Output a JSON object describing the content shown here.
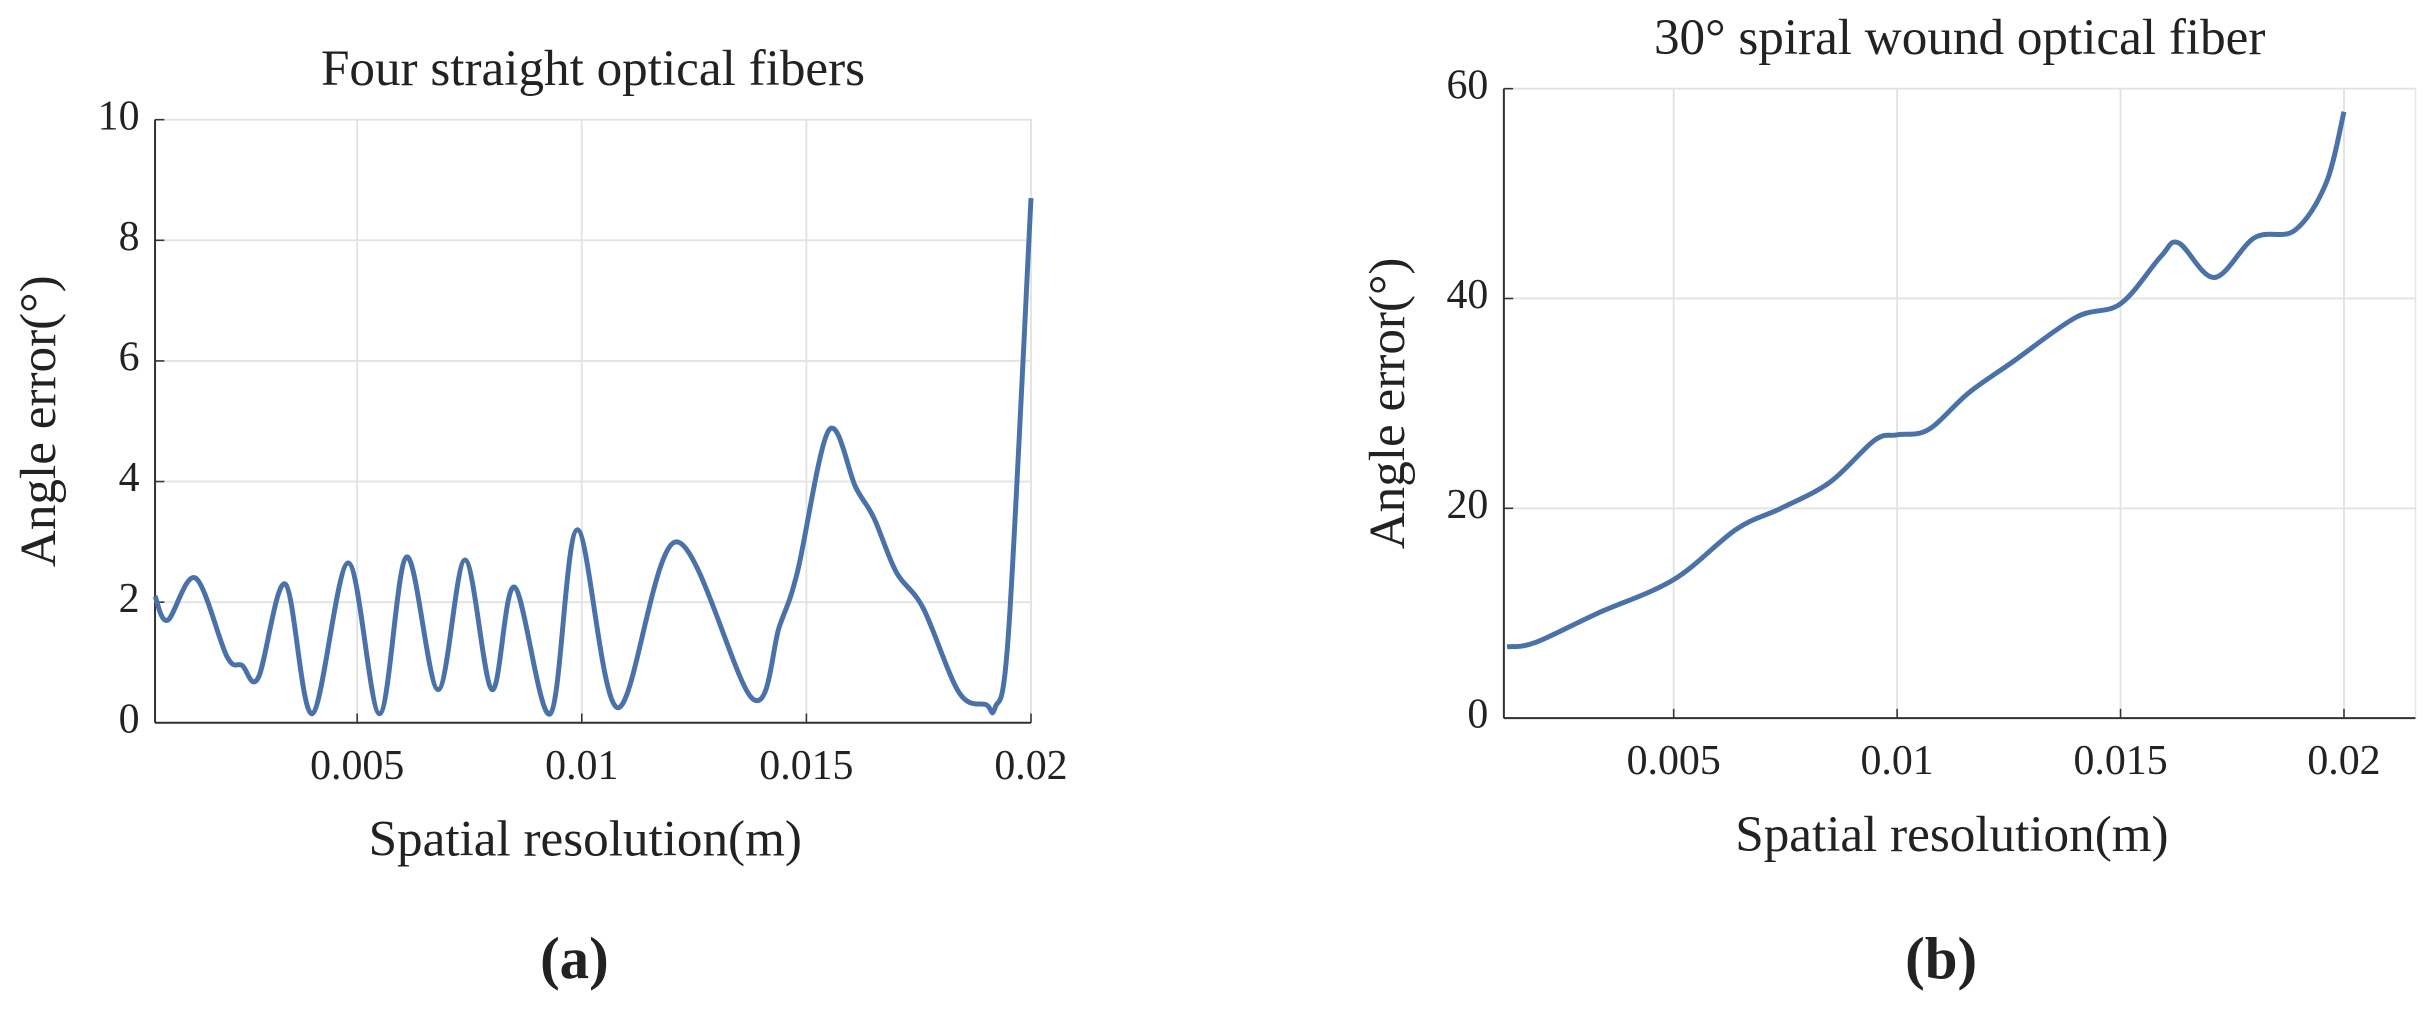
{
  "chart_data": [
    {
      "type": "line",
      "title": "Four straight optical fibers",
      "xlabel": "Spatial resolution(m)",
      "ylabel": "Angle error(°)",
      "panel_label": "(a)",
      "x": [
        0.0005,
        0.00078,
        0.0014,
        0.0021,
        0.00244,
        0.0028,
        0.0034,
        0.004,
        0.0048,
        0.0055,
        0.0061,
        0.0068,
        0.0074,
        0.008,
        0.0085,
        0.0093,
        0.0099,
        0.0108,
        0.0121,
        0.0138,
        0.0144,
        0.0148,
        0.0155,
        0.0161,
        0.0165,
        0.017,
        0.0176,
        0.0184,
        0.019,
        0.0192,
        0.0195,
        0.02
      ],
      "series": [
        {
          "name": "Angle error",
          "color": "#4a72a8",
          "values": [
            2.1,
            1.7,
            2.4,
            1.1,
            0.95,
            0.75,
            2.3,
            0.15,
            2.65,
            0.15,
            2.75,
            0.55,
            2.7,
            0.55,
            2.25,
            0.15,
            3.2,
            0.25,
            3.0,
            0.4,
            1.6,
            2.5,
            4.85,
            3.9,
            3.4,
            2.5,
            1.9,
            0.5,
            0.3,
            0.25,
            1.5,
            8.7
          ]
        }
      ],
      "xlim": [
        0.0005,
        0.02
      ],
      "xticks": [
        0.005,
        0.01,
        0.015,
        0.02
      ],
      "ylim": [
        0,
        10
      ],
      "yticks": [
        0,
        2,
        4,
        6,
        8,
        10
      ],
      "grid": true
    },
    {
      "type": "line",
      "title": "30° spiral wound optical fiber",
      "xlabel": "Spatial resolution(m)",
      "ylabel": "Angle error(°)",
      "panel_label": "(b)",
      "x": [
        0.00127,
        0.0019,
        0.0033,
        0.005,
        0.0064,
        0.0074,
        0.0085,
        0.0095,
        0.01,
        0.0107,
        0.0116,
        0.0126,
        0.014,
        0.015,
        0.0159,
        0.0163,
        0.0171,
        0.018,
        0.0189,
        0.0196,
        0.02
      ],
      "series": [
        {
          "name": "Angle error",
          "color": "#4a72a8",
          "values": [
            6.8,
            7.2,
            10,
            13.2,
            18,
            20,
            22.5,
            26.5,
            27,
            27.5,
            31,
            34,
            38.2,
            39.5,
            44,
            45.3,
            42,
            45.8,
            46.5,
            51,
            57.8
          ]
        }
      ],
      "xlim": [
        0.0012,
        0.0216
      ],
      "xticks": [
        0.005,
        0.01,
        0.015,
        0.02
      ],
      "ylim": [
        0,
        60
      ],
      "yticks": [
        0,
        20,
        40,
        60
      ],
      "grid": true
    }
  ]
}
